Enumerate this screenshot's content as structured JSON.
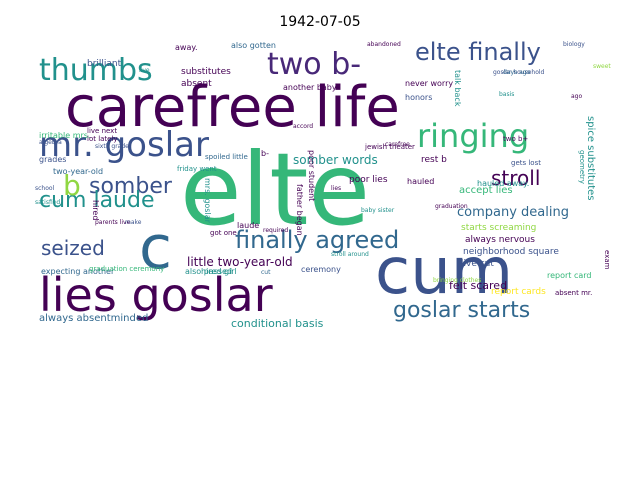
{
  "title": "1942-07-05",
  "colors": {
    "dark_purple": "#440154",
    "indigo": "#3b528b",
    "slate": "#31688e",
    "teal": "#21918c",
    "green": "#35b779",
    "lime": "#90d743",
    "yellow": "#fde725",
    "violet": "#482878"
  },
  "words": [
    "elte",
    "carefree life",
    "cum",
    "lies goslar",
    "c",
    "mr. goslar",
    "ringing",
    "thumbs",
    "two b-",
    "elte finally",
    "finally agreed",
    "goslar starts",
    "somber",
    "cum laude",
    "stroll",
    "seized",
    "b",
    "company dealing",
    "somber words",
    "little two-year-old",
    "conditional basis",
    "felt scared",
    "always absentminded",
    "accept lies",
    "spice substitutes",
    "starts screaming",
    "neighborhood square",
    "always nervous",
    "report cards",
    "live cut",
    "poor lies",
    "brilliant",
    "absent",
    "substitutes",
    "another baby",
    "never worry",
    "honors",
    "talk back",
    "hired girl",
    "expecting another",
    "grades",
    "irritable mrs.",
    "two-year-old",
    "hauled",
    "hauled away.",
    "rest b",
    "jewish theater",
    "poor student",
    "father began",
    "got one",
    "ceremony",
    "also passed",
    "laude",
    "mrs. goslar",
    "also gotten",
    "away.",
    "report card",
    "gets lost",
    "live next",
    "lot lately",
    "graduation ceremony",
    "friday went",
    "spoiled little",
    "absent mr.",
    "exam",
    "geometry",
    "algebra",
    "b-",
    "two b+",
    "sixth grade",
    "school",
    "satisfied",
    "baby sister",
    "bringing clothes",
    "stroll around",
    "required",
    "abandoned",
    "goslar household",
    "days ago",
    "basis",
    "biology",
    "carefree",
    "accord",
    "parents live",
    "sweet",
    "hired",
    "graduation",
    "make",
    "lies",
    "cut",
    "live",
    "ago"
  ]
}
